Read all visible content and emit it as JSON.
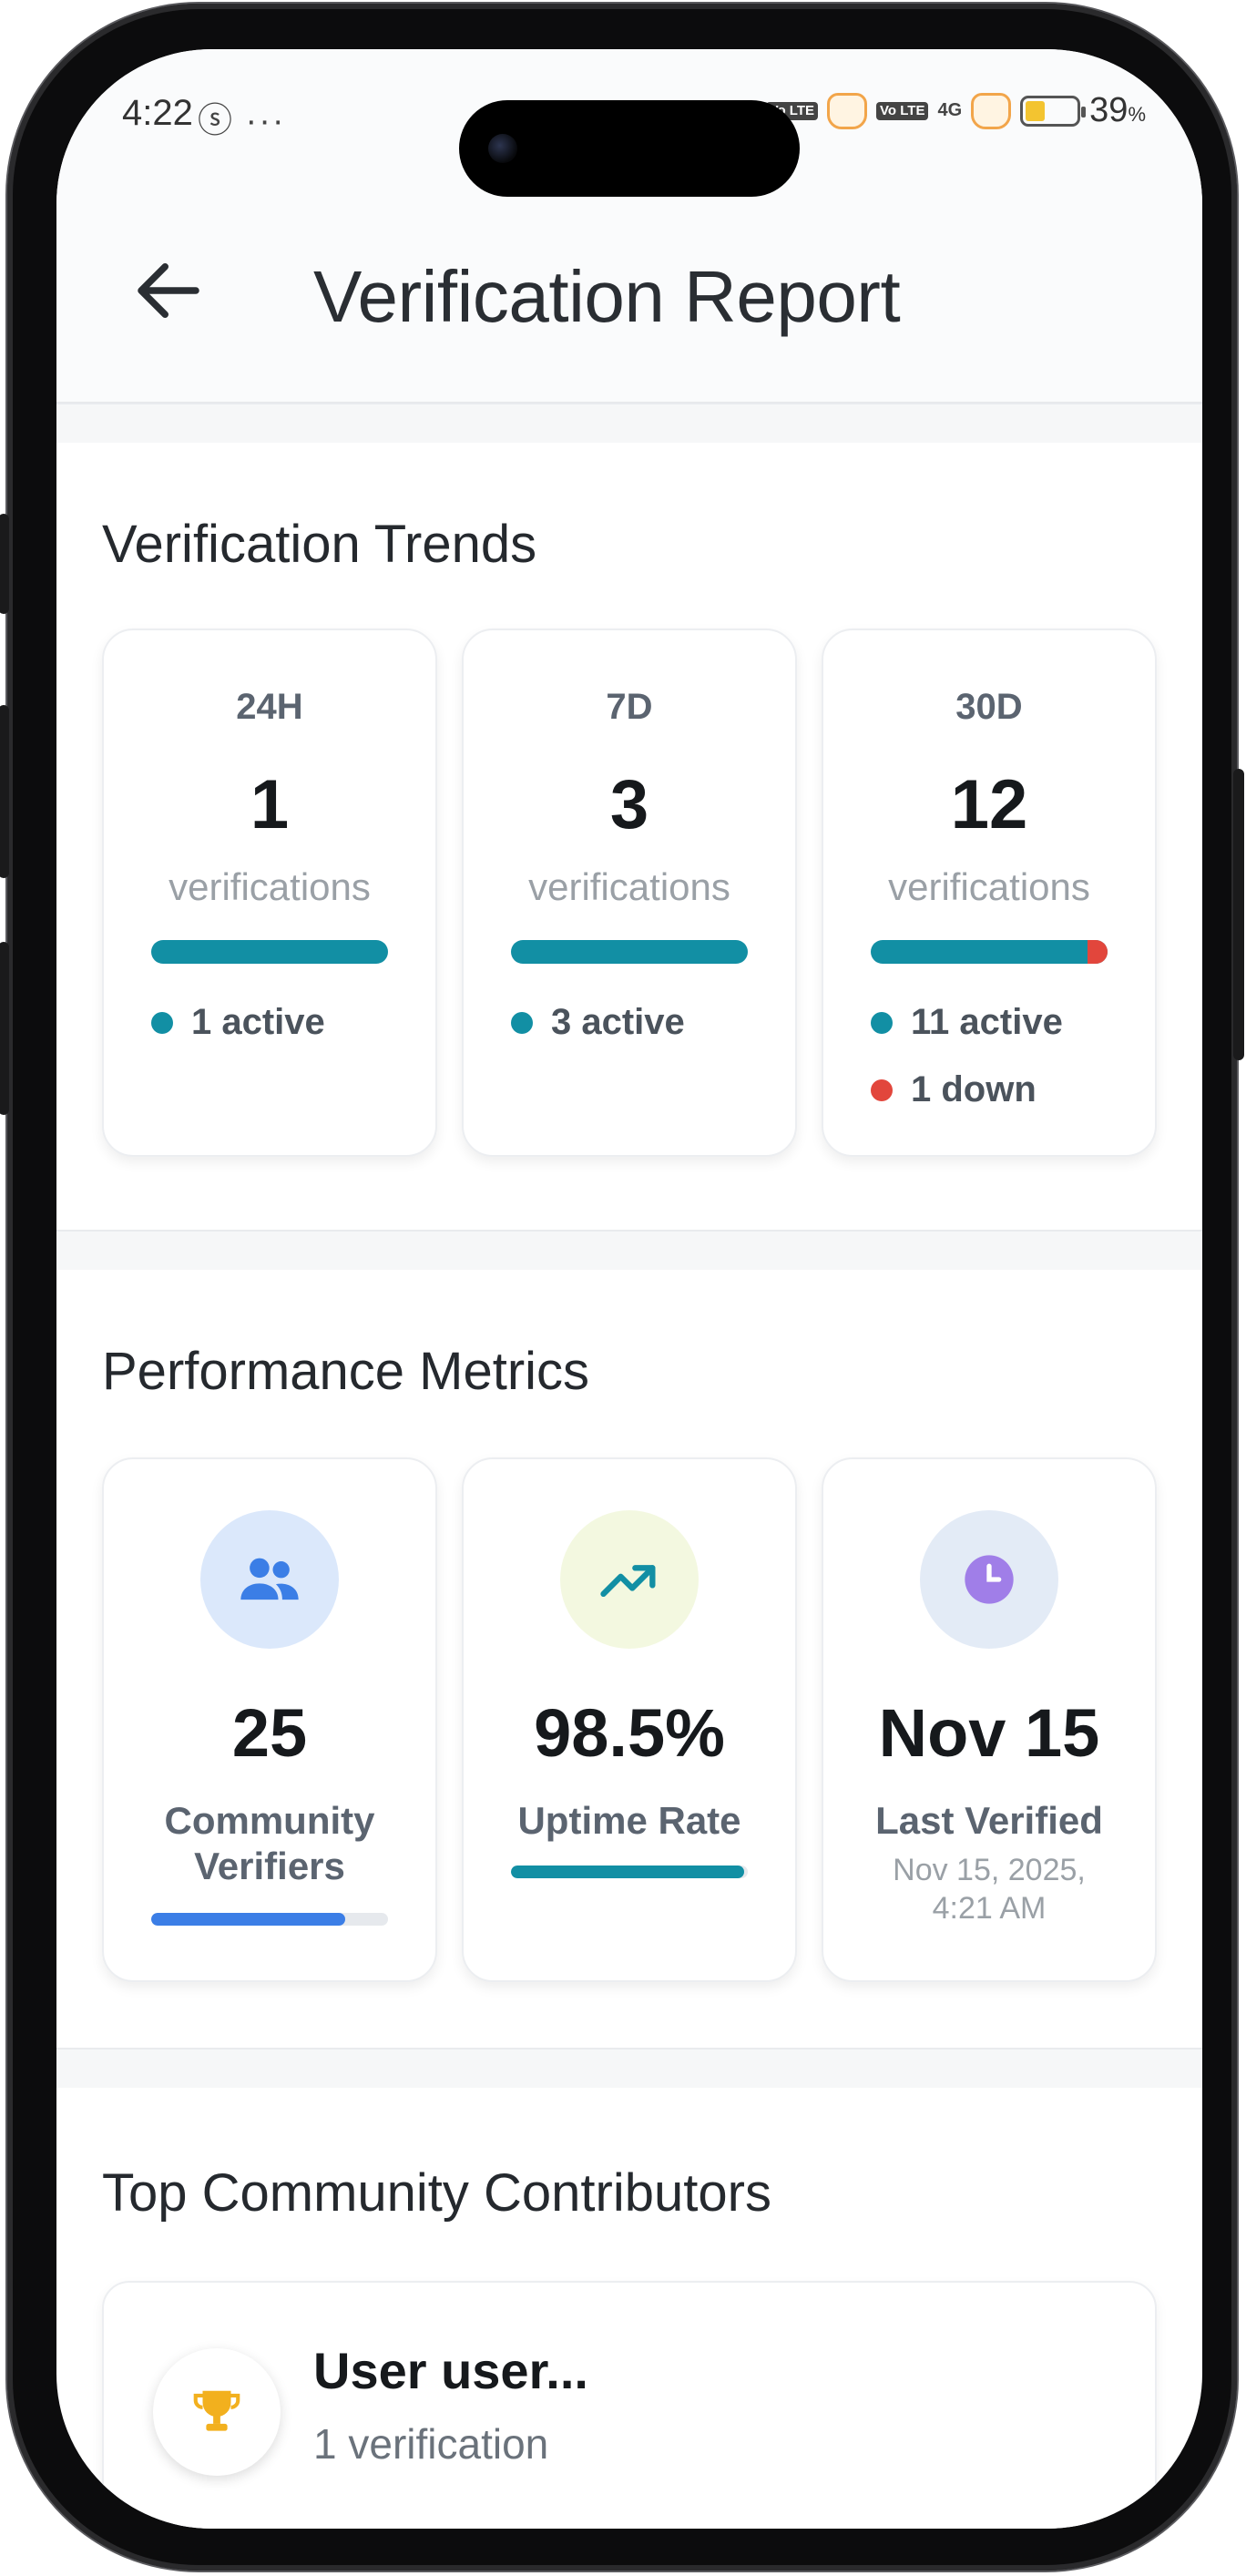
{
  "status_bar": {
    "time": "4:22",
    "left_icons": "ⓢ ···",
    "net_badge_1": "Vo LTE",
    "net_badge_2": "Vo LTE",
    "net_type": "4G",
    "battery_pct": "39",
    "battery_pct_unit": "%",
    "battery_level": 0.39
  },
  "header": {
    "title": "Verification Report",
    "back_icon": "arrow-left-icon"
  },
  "trends": {
    "title": "Verification Trends",
    "cards": [
      {
        "period": "24H",
        "count": "1",
        "unit": "verifications",
        "active_label": "1 active",
        "active": 1,
        "down": 0
      },
      {
        "period": "7D",
        "count": "3",
        "unit": "verifications",
        "active_label": "3 active",
        "active": 3,
        "down": 0
      },
      {
        "period": "30D",
        "count": "12",
        "unit": "verifications",
        "active_label": "11 active",
        "down_label": "1 down",
        "active": 11,
        "down": 1
      }
    ],
    "colors": {
      "active": "#128fa4",
      "down": "#e2463c"
    }
  },
  "performance": {
    "title": "Performance Metrics",
    "cards": [
      {
        "icon": "users-icon",
        "value": "25",
        "label": "Community Verifiers",
        "progress": 0.82,
        "progress_color": "#3b7ee6"
      },
      {
        "icon": "trending-up-icon",
        "value": "98.5%",
        "label": "Uptime Rate",
        "progress": 0.985,
        "progress_color": "#128fa4"
      },
      {
        "icon": "clock-icon",
        "value": "Nov 15",
        "label": "Last Verified",
        "sub": "Nov 15, 2025, 4:21 AM"
      }
    ]
  },
  "contributors": {
    "title": "Top Community Contributors",
    "items": [
      {
        "icon": "trophy-icon",
        "name": "User user...",
        "count_label": "1 verification"
      }
    ]
  }
}
